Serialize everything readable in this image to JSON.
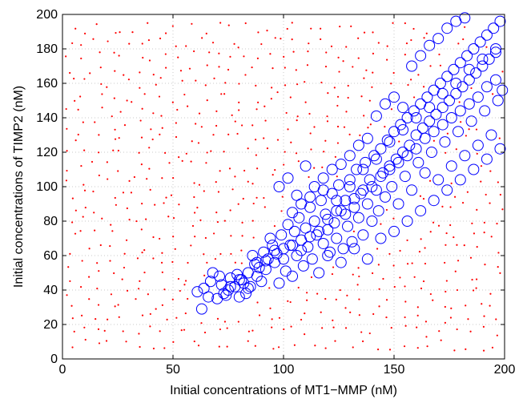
{
  "chart_data": {
    "type": "scatter",
    "title": "",
    "xlabel": "Initial concentrations of MT1−MMP (nM)",
    "ylabel": "Initial concentrations of TIMP2 (nM)",
    "xlim": [
      0,
      200
    ],
    "ylim": [
      0,
      200
    ],
    "x_ticks": [
      0,
      50,
      100,
      150,
      200
    ],
    "y_ticks": [
      0,
      20,
      40,
      60,
      80,
      100,
      120,
      140,
      160,
      180,
      200
    ],
    "x_tick_labels": [
      "0",
      "50",
      "100",
      "150",
      "200"
    ],
    "y_tick_labels": [
      "0",
      "20",
      "40",
      "60",
      "80",
      "100",
      "120",
      "140",
      "160",
      "180",
      "200"
    ],
    "grid": true,
    "legend": "none",
    "colors": {
      "circle_series": "#0000ff",
      "dot_series": "#ff0000",
      "grid": "#c8c8c8",
      "axes": "#000000"
    },
    "series": [
      {
        "marker": "circle",
        "color": "#0000ff",
        "points": [
          [
            61,
            39
          ],
          [
            63,
            29
          ],
          [
            67,
            45
          ],
          [
            70,
            35
          ],
          [
            71,
            48
          ],
          [
            72,
            43
          ],
          [
            73,
            38
          ],
          [
            74,
            37
          ],
          [
            75,
            40
          ],
          [
            76,
            47
          ],
          [
            78,
            42
          ],
          [
            79,
            49
          ],
          [
            80,
            36
          ],
          [
            81,
            46
          ],
          [
            82,
            44
          ],
          [
            83,
            38
          ],
          [
            84,
            50
          ],
          [
            85,
            42
          ],
          [
            86,
            60
          ],
          [
            87,
            55
          ],
          [
            88,
            48
          ],
          [
            89,
            53
          ],
          [
            90,
            45
          ],
          [
            91,
            62
          ],
          [
            92,
            52
          ],
          [
            93,
            58
          ],
          [
            94,
            70
          ],
          [
            95,
            66
          ],
          [
            96,
            56
          ],
          [
            97,
            61
          ],
          [
            98,
            44
          ],
          [
            99,
            72
          ],
          [
            100,
            64
          ],
          [
            101,
            51
          ],
          [
            102,
            78
          ],
          [
            103,
            66
          ],
          [
            104,
            48
          ],
          [
            105,
            74
          ],
          [
            106,
            60
          ],
          [
            107,
            82
          ],
          [
            108,
            69
          ],
          [
            109,
            54
          ],
          [
            110,
            76
          ],
          [
            111,
            65
          ],
          [
            112,
            88
          ],
          [
            113,
            58
          ],
          [
            114,
            80
          ],
          [
            115,
            72
          ],
          [
            116,
            50
          ],
          [
            117,
            92
          ],
          [
            118,
            67
          ],
          [
            119,
            84
          ],
          [
            120,
            75
          ],
          [
            121,
            62
          ],
          [
            122,
            96
          ],
          [
            123,
            79
          ],
          [
            124,
            70
          ],
          [
            125,
            101
          ],
          [
            126,
            86
          ],
          [
            127,
            64
          ],
          [
            128,
            92
          ],
          [
            129,
            77
          ],
          [
            130,
            104
          ],
          [
            131,
            68
          ],
          [
            132,
            88
          ],
          [
            133,
            110
          ],
          [
            134,
            82
          ],
          [
            135,
            96
          ],
          [
            136,
            72
          ],
          [
            137,
            114
          ],
          [
            138,
            90
          ],
          [
            139,
            104
          ],
          [
            140,
            80
          ],
          [
            141,
            118
          ],
          [
            142,
            98
          ],
          [
            143,
            86
          ],
          [
            144,
            122
          ],
          [
            145,
            108
          ],
          [
            146,
            94
          ],
          [
            147,
            127
          ],
          [
            148,
            112
          ],
          [
            149,
            100
          ],
          [
            150,
            132
          ],
          [
            151,
            116
          ],
          [
            152,
            90
          ],
          [
            153,
            136
          ],
          [
            154,
            120
          ],
          [
            155,
            106
          ],
          [
            156,
            140
          ],
          [
            157,
            124
          ],
          [
            158,
            98
          ],
          [
            159,
            144
          ],
          [
            160,
            130
          ],
          [
            161,
            114
          ],
          [
            162,
            148
          ],
          [
            163,
            134
          ],
          [
            164,
            108
          ],
          [
            165,
            152
          ],
          [
            166,
            138
          ],
          [
            167,
            120
          ],
          [
            168,
            156
          ],
          [
            169,
            142
          ],
          [
            170,
            104
          ],
          [
            171,
            160
          ],
          [
            172,
            146
          ],
          [
            173,
            126
          ],
          [
            174,
            164
          ],
          [
            175,
            150
          ],
          [
            176,
            112
          ],
          [
            177,
            168
          ],
          [
            178,
            154
          ],
          [
            179,
            132
          ],
          [
            180,
            172
          ],
          [
            181,
            158
          ],
          [
            182,
            118
          ],
          [
            183,
            176
          ],
          [
            184,
            162
          ],
          [
            185,
            138
          ],
          [
            186,
            180
          ],
          [
            187,
            166
          ],
          [
            188,
            124
          ],
          [
            189,
            184
          ],
          [
            190,
            170
          ],
          [
            191,
            144
          ],
          [
            192,
            188
          ],
          [
            193,
            174
          ],
          [
            194,
            130
          ],
          [
            195,
            192
          ],
          [
            196,
            178
          ],
          [
            197,
            150
          ],
          [
            198,
            196
          ],
          [
            199,
            156
          ],
          [
            64,
            41
          ],
          [
            66,
            36
          ],
          [
            68,
            50
          ],
          [
            76,
            42
          ],
          [
            80,
            46
          ],
          [
            84,
            41
          ],
          [
            88,
            56
          ],
          [
            92,
            57
          ],
          [
            96,
            63
          ],
          [
            100,
            58
          ],
          [
            104,
            66
          ],
          [
            108,
            63
          ],
          [
            112,
            71
          ],
          [
            116,
            74
          ],
          [
            120,
            81
          ],
          [
            124,
            86
          ],
          [
            128,
            84
          ],
          [
            132,
            93
          ],
          [
            136,
            98
          ],
          [
            140,
            100
          ],
          [
            144,
            106
          ],
          [
            148,
            110
          ],
          [
            152,
            114
          ],
          [
            156,
            118
          ],
          [
            160,
            122
          ],
          [
            164,
            128
          ],
          [
            168,
            132
          ],
          [
            172,
            136
          ],
          [
            176,
            140
          ],
          [
            180,
            144
          ],
          [
            184,
            148
          ],
          [
            188,
            152
          ],
          [
            192,
            158
          ],
          [
            196,
            162
          ],
          [
            98,
            100
          ],
          [
            102,
            105
          ],
          [
            106,
            95
          ],
          [
            110,
            112
          ],
          [
            114,
            100
          ],
          [
            118,
            105
          ],
          [
            122,
            110
          ],
          [
            126,
            113
          ],
          [
            130,
            118
          ],
          [
            134,
            124
          ],
          [
            138,
            128
          ],
          [
            142,
            141
          ],
          [
            146,
            148
          ],
          [
            150,
            152
          ],
          [
            154,
            146
          ],
          [
            158,
            170
          ],
          [
            162,
            176
          ],
          [
            166,
            182
          ],
          [
            170,
            186
          ],
          [
            174,
            192
          ],
          [
            178,
            196
          ],
          [
            182,
            198
          ],
          [
            104,
            85
          ],
          [
            108,
            90
          ],
          [
            112,
            94
          ],
          [
            118,
            98
          ],
          [
            124,
            92
          ],
          [
            130,
            100
          ],
          [
            136,
            110
          ],
          [
            142,
            116
          ],
          [
            148,
            126
          ],
          [
            154,
            133
          ],
          [
            160,
            140
          ],
          [
            166,
            146
          ],
          [
            172,
            154
          ],
          [
            178,
            160
          ],
          [
            184,
            168
          ],
          [
            190,
            174
          ],
          [
            196,
            180
          ],
          [
            120,
            60
          ],
          [
            126,
            56
          ],
          [
            132,
            64
          ],
          [
            138,
            58
          ],
          [
            144,
            70
          ],
          [
            150,
            74
          ],
          [
            156,
            80
          ],
          [
            162,
            86
          ],
          [
            168,
            92
          ],
          [
            174,
            98
          ],
          [
            180,
            104
          ],
          [
            186,
            110
          ],
          [
            192,
            116
          ],
          [
            198,
            122
          ]
        ]
      },
      {
        "marker": "dot",
        "color": "#ff0000",
        "layout": "jittered lattice over the full 0-200 x 0-200 domain, excluding the circle region"
      }
    ]
  }
}
